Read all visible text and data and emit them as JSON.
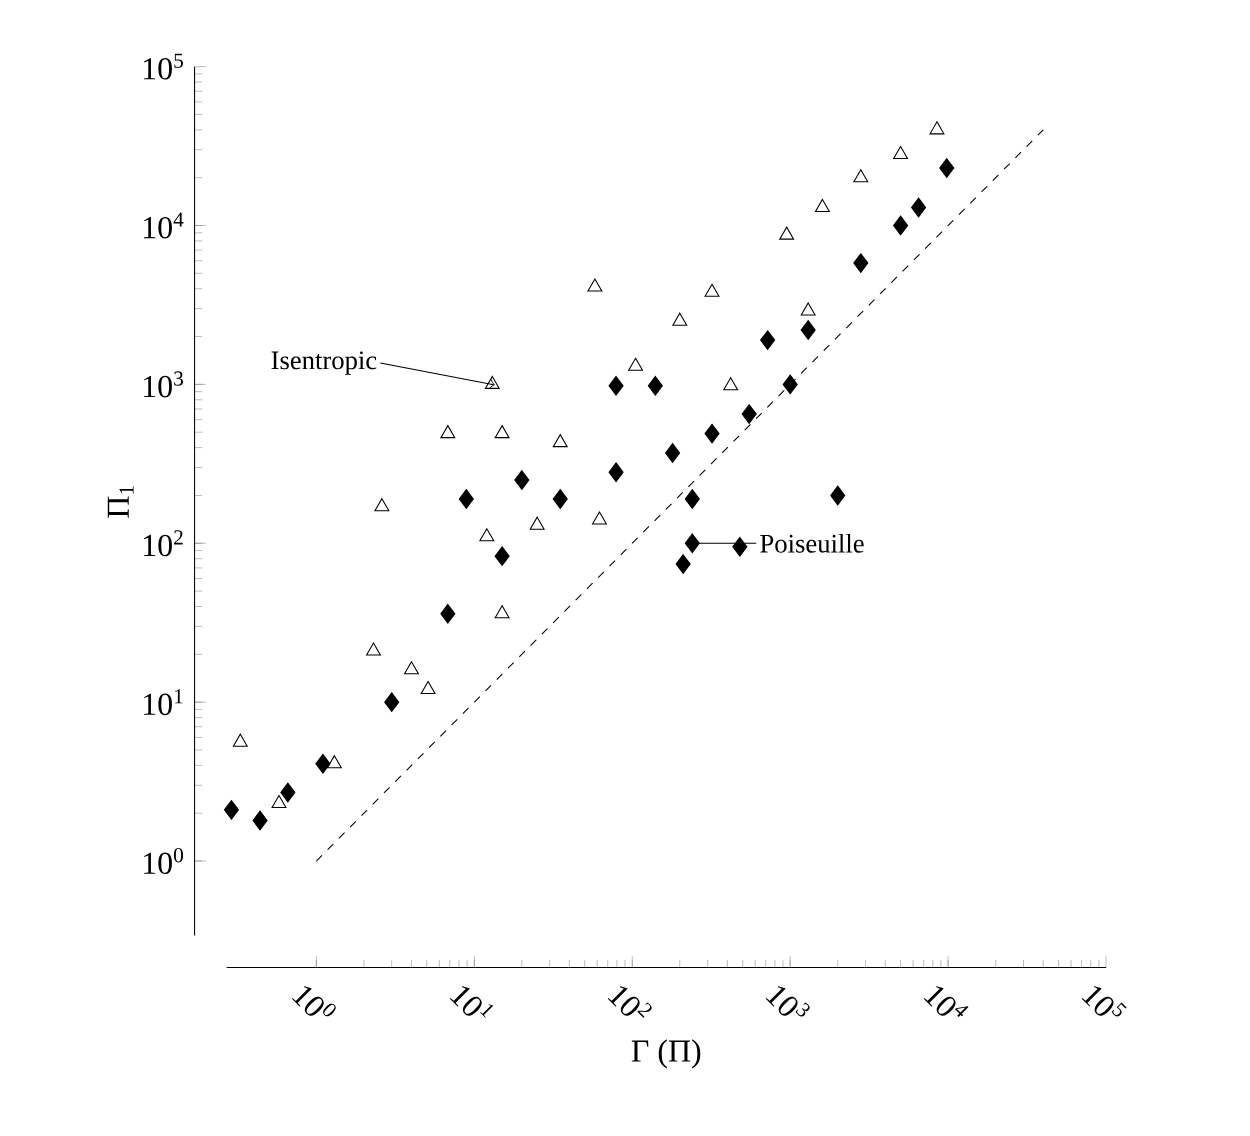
{
  "chart_data": {
    "type": "scatter",
    "xlabel": "Γ (Π)",
    "ylabel": "Π$_{1}$",
    "log": "xy",
    "xlim": [
      0.27,
      100000
    ],
    "ylim": [
      0.34,
      100000
    ],
    "xticks": [
      {
        "value": 1,
        "label": "10$^{0}$"
      },
      {
        "value": 10,
        "label": "10$^{1}$"
      },
      {
        "value": 100,
        "label": "10$^{2}$"
      },
      {
        "value": 1000,
        "label": "10$^{3}$"
      },
      {
        "value": 10000,
        "label": "10$^{4}$"
      },
      {
        "value": 100000,
        "label": "10$^{5}$"
      }
    ],
    "yticks": [
      {
        "value": 1,
        "label": "10$^{0}$"
      },
      {
        "value": 10,
        "label": "10$^{1}$"
      },
      {
        "value": 100,
        "label": "10$^{2}$"
      },
      {
        "value": 1000,
        "label": "10$^{3}$"
      },
      {
        "value": 10000,
        "label": "10$^{4}$"
      },
      {
        "value": 100000,
        "label": "10$^{5}$"
      }
    ],
    "grid": false,
    "series": [
      {
        "color": "#000000",
        "marker": "triangle",
        "x": [
          0.33,
          2.3,
          12,
          35,
          105,
          320,
          950,
          2800,
          8500,
          0.58,
          1.3,
          5.1,
          15,
          62,
          420,
          1300,
          13,
          15,
          6.8,
          2.6,
          58,
          4.0,
          25,
          200,
          1600,
          5000
        ],
        "values": [
          5.6,
          21,
          110,
          430,
          1300,
          3800,
          8700,
          20000,
          40000,
          2.3,
          4.1,
          12,
          36,
          140,
          980,
          2900,
          1000,
          490,
          490,
          170,
          4100,
          16,
          130,
          2500,
          13000,
          28000
        ]
      },
      {
        "color": "#000000",
        "marker": "diamond",
        "x": [
          0.29,
          0.44,
          0.66,
          1.1,
          3.0,
          6.8,
          15,
          35,
          79,
          180,
          320,
          550,
          1300,
          2800,
          6500,
          9800,
          140,
          240,
          480,
          240,
          210,
          79,
          2000,
          720,
          8.9,
          20,
          1000,
          5000
        ],
        "values": [
          2.1,
          1.8,
          2.7,
          4.1,
          10,
          36,
          83,
          190,
          280,
          370,
          490,
          650,
          2200,
          5800,
          13000,
          23000,
          980,
          190,
          95,
          100,
          74,
          980,
          200,
          1900,
          190,
          250,
          1000,
          10000
        ]
      },
      {
        "type": "line",
        "color": "#000000",
        "line_style": "dashed",
        "marker": "none",
        "x": [
          1,
          40000
        ],
        "values": [
          1,
          40000
        ]
      }
    ],
    "annotations": [
      {
        "text": "Isentropic",
        "x": 13,
        "y": 1000
      },
      {
        "text": "Poiseuille",
        "x": 240,
        "y": 100
      }
    ]
  }
}
